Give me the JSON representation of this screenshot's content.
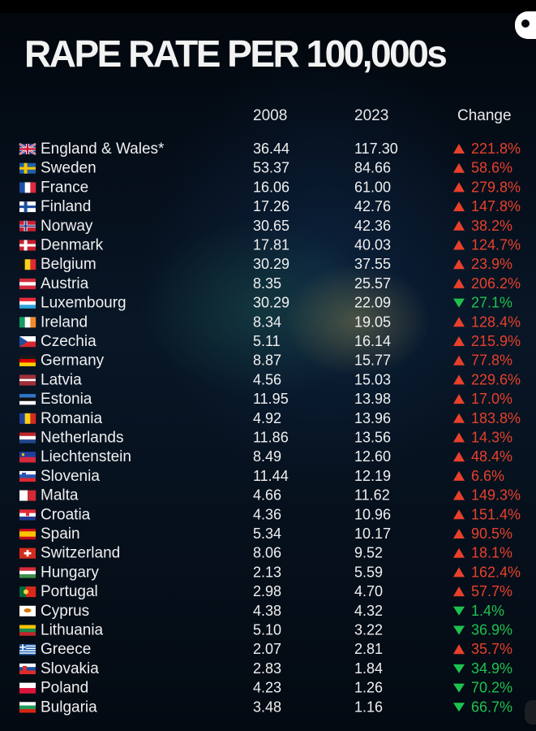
{
  "title": "RAPE RATE PER 100,000s",
  "colors": {
    "up": "#e8402b",
    "down": "#1fc24f",
    "text": "#f0f0f0",
    "background": "#05080d"
  },
  "chart_data": {
    "type": "table",
    "title": "RAPE RATE PER 100,000s",
    "columns": [
      "2008",
      "2023",
      "Change"
    ],
    "rows": [
      {
        "country": "England & Wales*",
        "flag": "gb",
        "v2008": "36.44",
        "v2023": "117.30",
        "change": "221.8%",
        "direction": "up"
      },
      {
        "country": "Sweden",
        "flag": "se",
        "v2008": "53.37",
        "v2023": "84.66",
        "change": "58.6%",
        "direction": "up"
      },
      {
        "country": "France",
        "flag": "fr",
        "v2008": "16.06",
        "v2023": "61.00",
        "change": "279.8%",
        "direction": "up"
      },
      {
        "country": "Finland",
        "flag": "fi",
        "v2008": "17.26",
        "v2023": "42.76",
        "change": "147.8%",
        "direction": "up"
      },
      {
        "country": "Norway",
        "flag": "no",
        "v2008": "30.65",
        "v2023": "42.36",
        "change": "38.2%",
        "direction": "up"
      },
      {
        "country": "Denmark",
        "flag": "dk",
        "v2008": "17.81",
        "v2023": "40.03",
        "change": "124.7%",
        "direction": "up"
      },
      {
        "country": "Belgium",
        "flag": "be",
        "v2008": "30.29",
        "v2023": "37.55",
        "change": "23.9%",
        "direction": "up"
      },
      {
        "country": "Austria",
        "flag": "at",
        "v2008": "8.35",
        "v2023": "25.57",
        "change": "206.2%",
        "direction": "up"
      },
      {
        "country": "Luxembourg",
        "flag": "lu",
        "v2008": "30.29",
        "v2023": "22.09",
        "change": "27.1%",
        "direction": "down"
      },
      {
        "country": "Ireland",
        "flag": "ie",
        "v2008": "8.34",
        "v2023": "19.05",
        "change": "128.4%",
        "direction": "up"
      },
      {
        "country": "Czechia",
        "flag": "cz",
        "v2008": "5.11",
        "v2023": "16.14",
        "change": "215.9%",
        "direction": "up"
      },
      {
        "country": "Germany",
        "flag": "de",
        "v2008": "8.87",
        "v2023": "15.77",
        "change": "77.8%",
        "direction": "up"
      },
      {
        "country": "Latvia",
        "flag": "lv",
        "v2008": "4.56",
        "v2023": "15.03",
        "change": "229.6%",
        "direction": "up"
      },
      {
        "country": "Estonia",
        "flag": "ee",
        "v2008": "11.95",
        "v2023": "13.98",
        "change": "17.0%",
        "direction": "up"
      },
      {
        "country": "Romania",
        "flag": "ro",
        "v2008": "4.92",
        "v2023": "13.96",
        "change": "183.8%",
        "direction": "up"
      },
      {
        "country": "Netherlands",
        "flag": "nl",
        "v2008": "11.86",
        "v2023": "13.56",
        "change": "14.3%",
        "direction": "up"
      },
      {
        "country": "Liechtenstein",
        "flag": "li",
        "v2008": "8.49",
        "v2023": "12.60",
        "change": "48.4%",
        "direction": "up"
      },
      {
        "country": "Slovenia",
        "flag": "si",
        "v2008": "11.44",
        "v2023": "12.19",
        "change": "6.6%",
        "direction": "up"
      },
      {
        "country": "Malta",
        "flag": "mt",
        "v2008": "4.66",
        "v2023": "11.62",
        "change": "149.3%",
        "direction": "up"
      },
      {
        "country": "Croatia",
        "flag": "hr",
        "v2008": "4.36",
        "v2023": "10.96",
        "change": "151.4%",
        "direction": "up"
      },
      {
        "country": "Spain",
        "flag": "es",
        "v2008": "5.34",
        "v2023": "10.17",
        "change": "90.5%",
        "direction": "up"
      },
      {
        "country": "Switzerland",
        "flag": "ch",
        "v2008": "8.06",
        "v2023": "9.52",
        "change": "18.1%",
        "direction": "up"
      },
      {
        "country": "Hungary",
        "flag": "hu",
        "v2008": "2.13",
        "v2023": "5.59",
        "change": "162.4%",
        "direction": "up"
      },
      {
        "country": "Portugal",
        "flag": "pt",
        "v2008": "2.98",
        "v2023": "4.70",
        "change": "57.7%",
        "direction": "up"
      },
      {
        "country": "Cyprus",
        "flag": "cy",
        "v2008": "4.38",
        "v2023": "4.32",
        "change": "1.4%",
        "direction": "down"
      },
      {
        "country": "Lithuania",
        "flag": "lt",
        "v2008": "5.10",
        "v2023": "3.22",
        "change": "36.9%",
        "direction": "down"
      },
      {
        "country": "Greece",
        "flag": "gr",
        "v2008": "2.07",
        "v2023": "2.81",
        "change": "35.7%",
        "direction": "up"
      },
      {
        "country": "Slovakia",
        "flag": "sk",
        "v2008": "2.83",
        "v2023": "1.84",
        "change": "34.9%",
        "direction": "down"
      },
      {
        "country": "Poland",
        "flag": "pl",
        "v2008": "4.23",
        "v2023": "1.26",
        "change": "70.2%",
        "direction": "down"
      },
      {
        "country": "Bulgaria",
        "flag": "bg",
        "v2008": "3.48",
        "v2023": "1.16",
        "change": "66.7%",
        "direction": "down"
      }
    ]
  }
}
